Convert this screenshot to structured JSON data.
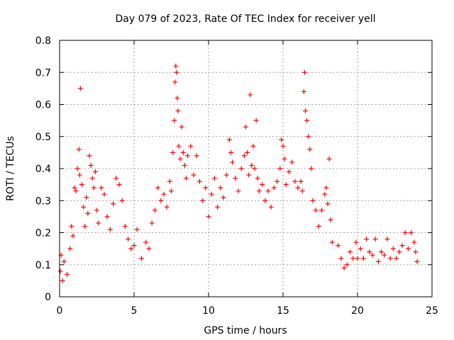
{
  "chart_data": {
    "type": "scatter",
    "title": "Day 079 of 2023, Rate Of TEC Index for receiver yell",
    "xlabel": "GPS time / hours",
    "ylabel": "ROTI / TECUs",
    "xlim": [
      0,
      25
    ],
    "ylim": [
      0,
      0.8
    ],
    "xticks": [
      "0",
      "5",
      "10",
      "15",
      "20",
      "25"
    ],
    "yticks": [
      "0",
      "0.1",
      "0.2",
      "0.3",
      "0.4",
      "0.5",
      "0.6",
      "0.7",
      "0.8"
    ],
    "grid": true,
    "marker": "plus",
    "color": "#ff0000",
    "series": [
      {
        "points": [
          [
            0.05,
            0.08
          ],
          [
            0.1,
            0.13
          ],
          [
            0.2,
            0.05
          ],
          [
            0.3,
            0.11
          ],
          [
            0.5,
            0.07
          ],
          [
            0.7,
            0.15
          ],
          [
            0.8,
            0.22
          ],
          [
            0.9,
            0.19
          ],
          [
            1.0,
            0.34
          ],
          [
            1.1,
            0.33
          ],
          [
            1.2,
            0.4
          ],
          [
            1.3,
            0.46
          ],
          [
            1.35,
            0.38
          ],
          [
            1.4,
            0.65
          ],
          [
            1.5,
            0.35
          ],
          [
            1.6,
            0.28
          ],
          [
            1.7,
            0.22
          ],
          [
            1.8,
            0.31
          ],
          [
            1.9,
            0.26
          ],
          [
            2.0,
            0.44
          ],
          [
            2.1,
            0.41
          ],
          [
            2.2,
            0.37
          ],
          [
            2.3,
            0.34
          ],
          [
            2.4,
            0.39
          ],
          [
            2.5,
            0.27
          ],
          [
            2.6,
            0.23
          ],
          [
            2.8,
            0.34
          ],
          [
            3.0,
            0.32
          ],
          [
            3.2,
            0.25
          ],
          [
            3.4,
            0.21
          ],
          [
            3.6,
            0.29
          ],
          [
            3.8,
            0.37
          ],
          [
            4.0,
            0.35
          ],
          [
            4.2,
            0.3
          ],
          [
            4.4,
            0.22
          ],
          [
            4.6,
            0.18
          ],
          [
            4.8,
            0.15
          ],
          [
            5.0,
            0.16
          ],
          [
            5.2,
            0.21
          ],
          [
            5.5,
            0.12
          ],
          [
            5.8,
            0.17
          ],
          [
            6.0,
            0.15
          ],
          [
            6.2,
            0.23
          ],
          [
            6.4,
            0.27
          ],
          [
            6.6,
            0.34
          ],
          [
            6.8,
            0.3
          ],
          [
            7.0,
            0.32
          ],
          [
            7.2,
            0.28
          ],
          [
            7.4,
            0.36
          ],
          [
            7.5,
            0.33
          ],
          [
            7.6,
            0.45
          ],
          [
            7.7,
            0.55
          ],
          [
            7.75,
            0.67
          ],
          [
            7.8,
            0.72
          ],
          [
            7.85,
            0.7
          ],
          [
            7.9,
            0.62
          ],
          [
            7.95,
            0.58
          ],
          [
            8.0,
            0.47
          ],
          [
            8.1,
            0.43
          ],
          [
            8.2,
            0.53
          ],
          [
            8.3,
            0.45
          ],
          [
            8.4,
            0.41
          ],
          [
            8.5,
            0.37
          ],
          [
            8.6,
            0.44
          ],
          [
            8.8,
            0.47
          ],
          [
            9.0,
            0.38
          ],
          [
            9.2,
            0.44
          ],
          [
            9.4,
            0.36
          ],
          [
            9.6,
            0.3
          ],
          [
            9.8,
            0.34
          ],
          [
            10.0,
            0.25
          ],
          [
            10.2,
            0.32
          ],
          [
            10.4,
            0.37
          ],
          [
            10.6,
            0.28
          ],
          [
            10.8,
            0.34
          ],
          [
            11.0,
            0.31
          ],
          [
            11.2,
            0.38
          ],
          [
            11.4,
            0.49
          ],
          [
            11.5,
            0.45
          ],
          [
            11.6,
            0.42
          ],
          [
            11.8,
            0.37
          ],
          [
            12.0,
            0.33
          ],
          [
            12.2,
            0.4
          ],
          [
            12.4,
            0.44
          ],
          [
            12.5,
            0.53
          ],
          [
            12.6,
            0.45
          ],
          [
            12.7,
            0.38
          ],
          [
            12.8,
            0.63
          ],
          [
            12.9,
            0.41
          ],
          [
            13.0,
            0.47
          ],
          [
            13.1,
            0.4
          ],
          [
            13.2,
            0.55
          ],
          [
            13.3,
            0.37
          ],
          [
            13.4,
            0.33
          ],
          [
            13.6,
            0.35
          ],
          [
            13.8,
            0.3
          ],
          [
            14.0,
            0.33
          ],
          [
            14.2,
            0.28
          ],
          [
            14.4,
            0.34
          ],
          [
            14.6,
            0.36
          ],
          [
            14.8,
            0.4
          ],
          [
            14.9,
            0.49
          ],
          [
            15.0,
            0.47
          ],
          [
            15.1,
            0.43
          ],
          [
            15.2,
            0.35
          ],
          [
            15.4,
            0.39
          ],
          [
            15.6,
            0.42
          ],
          [
            15.8,
            0.36
          ],
          [
            16.0,
            0.34
          ],
          [
            16.2,
            0.36
          ],
          [
            16.3,
            0.33
          ],
          [
            16.4,
            0.64
          ],
          [
            16.45,
            0.7
          ],
          [
            16.5,
            0.58
          ],
          [
            16.6,
            0.55
          ],
          [
            16.7,
            0.5
          ],
          [
            16.8,
            0.46
          ],
          [
            16.9,
            0.4
          ],
          [
            17.0,
            0.3
          ],
          [
            17.2,
            0.27
          ],
          [
            17.4,
            0.22
          ],
          [
            17.6,
            0.27
          ],
          [
            17.8,
            0.32
          ],
          [
            17.9,
            0.34
          ],
          [
            18.0,
            0.29
          ],
          [
            18.1,
            0.43
          ],
          [
            18.2,
            0.24
          ],
          [
            18.3,
            0.17
          ],
          [
            18.7,
            0.16
          ],
          [
            18.9,
            0.12
          ],
          [
            19.1,
            0.09
          ],
          [
            19.3,
            0.1
          ],
          [
            19.5,
            0.14
          ],
          [
            19.7,
            0.12
          ],
          [
            19.9,
            0.17
          ],
          [
            20.0,
            0.12
          ],
          [
            20.2,
            0.15
          ],
          [
            20.4,
            0.12
          ],
          [
            20.6,
            0.18
          ],
          [
            20.8,
            0.14
          ],
          [
            21.0,
            0.13
          ],
          [
            21.2,
            0.18
          ],
          [
            21.4,
            0.11
          ],
          [
            21.6,
            0.14
          ],
          [
            21.8,
            0.13
          ],
          [
            22.0,
            0.18
          ],
          [
            22.2,
            0.12
          ],
          [
            22.4,
            0.15
          ],
          [
            22.6,
            0.12
          ],
          [
            22.8,
            0.14
          ],
          [
            23.0,
            0.16
          ],
          [
            23.2,
            0.2
          ],
          [
            23.4,
            0.15
          ],
          [
            23.6,
            0.2
          ],
          [
            23.8,
            0.17
          ],
          [
            23.9,
            0.14
          ],
          [
            24.0,
            0.11
          ]
        ]
      }
    ]
  }
}
